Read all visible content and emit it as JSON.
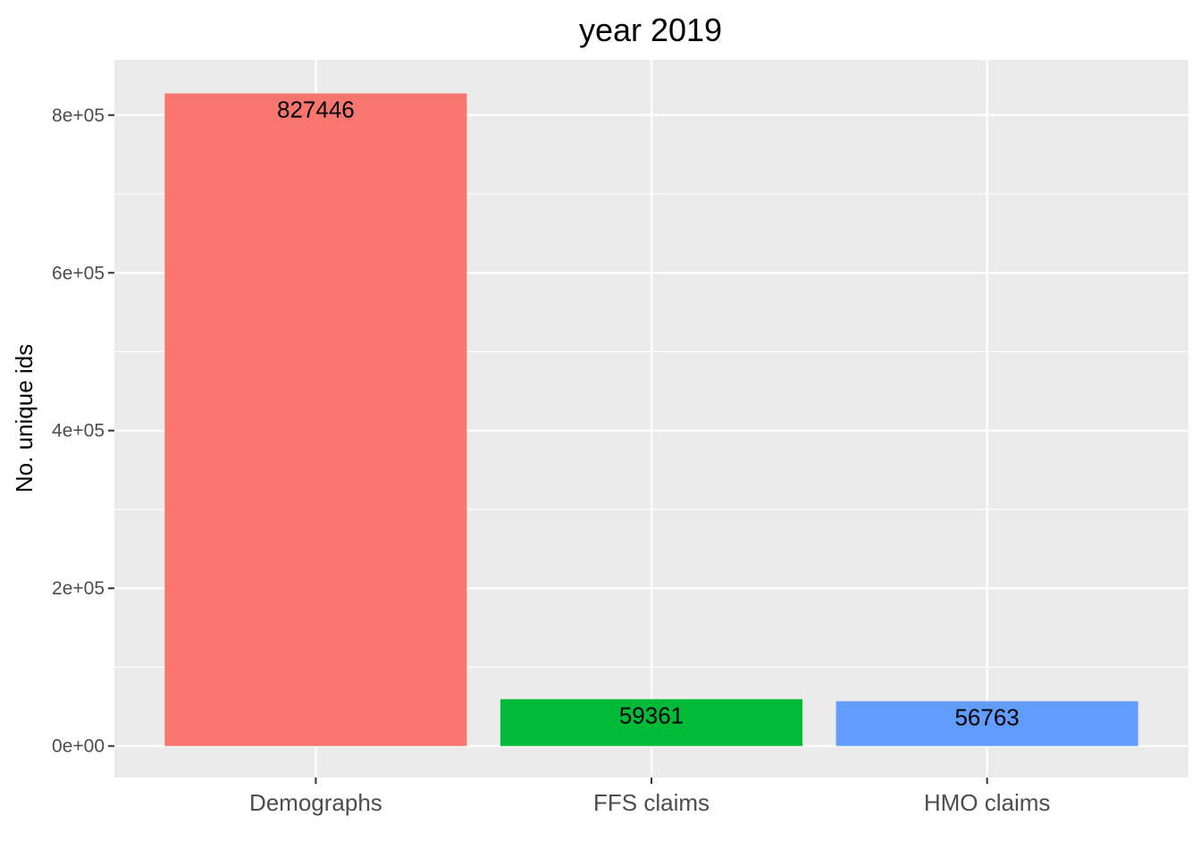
{
  "chart_data": {
    "type": "bar",
    "title": "year 2019",
    "xlabel": "",
    "ylabel": "No. unique ids",
    "categories": [
      "Demographs",
      "FFS claims",
      "HMO claims"
    ],
    "values": [
      827446,
      59361,
      56763
    ],
    "data_labels": [
      "827446",
      "59361",
      "56763"
    ],
    "colors": [
      "#F8766D",
      "#00BA38",
      "#619CFF"
    ],
    "ylim": [
      -40000,
      870000
    ],
    "yticks": [
      0,
      200000,
      400000,
      600000,
      800000
    ],
    "ytick_labels": [
      "0e+00",
      "2e+05",
      "4e+05",
      "6e+05",
      "8e+05"
    ],
    "panel_background": "#EBEBEB",
    "grid": true,
    "legend": "none"
  }
}
